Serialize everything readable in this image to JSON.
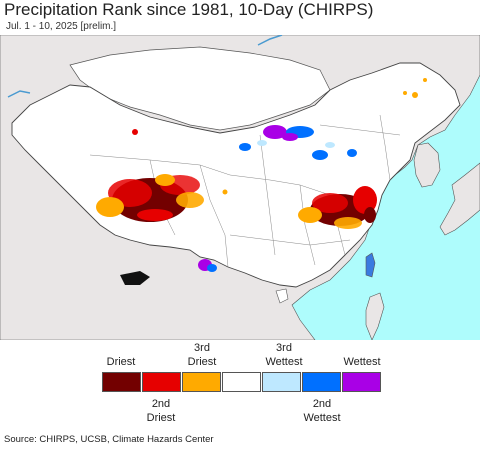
{
  "title": "Precipitation Rank since 1981, 10-Day (CHIRPS)",
  "subtitle": "Jul. 1 - 10, 2025 [prelim.]",
  "colors": {
    "ocean": "#aefcfc",
    "land_outside": "#e9e6e6",
    "china": "#ffffff",
    "border": "#555555"
  },
  "legend": {
    "items": [
      {
        "color": "#730000",
        "top_label": "Driest",
        "bottom_label": ""
      },
      {
        "color": "#e60000",
        "top_label": "",
        "bottom_label": "2nd\nDriest"
      },
      {
        "color": "#ffaa00",
        "top_label": "3rd\nDriest",
        "bottom_label": ""
      },
      {
        "color": "#ffffff",
        "top_label": "",
        "bottom_label": ""
      },
      {
        "color": "#bee8ff",
        "top_label": "3rd\nWettest",
        "bottom_label": ""
      },
      {
        "color": "#0070ff",
        "top_label": "",
        "bottom_label": "2nd\nWettest"
      },
      {
        "color": "#a900e6",
        "top_label": "Wettest",
        "bottom_label": ""
      }
    ]
  },
  "source": "Source: CHIRPS, UCSB, Climate Hazards Center"
}
